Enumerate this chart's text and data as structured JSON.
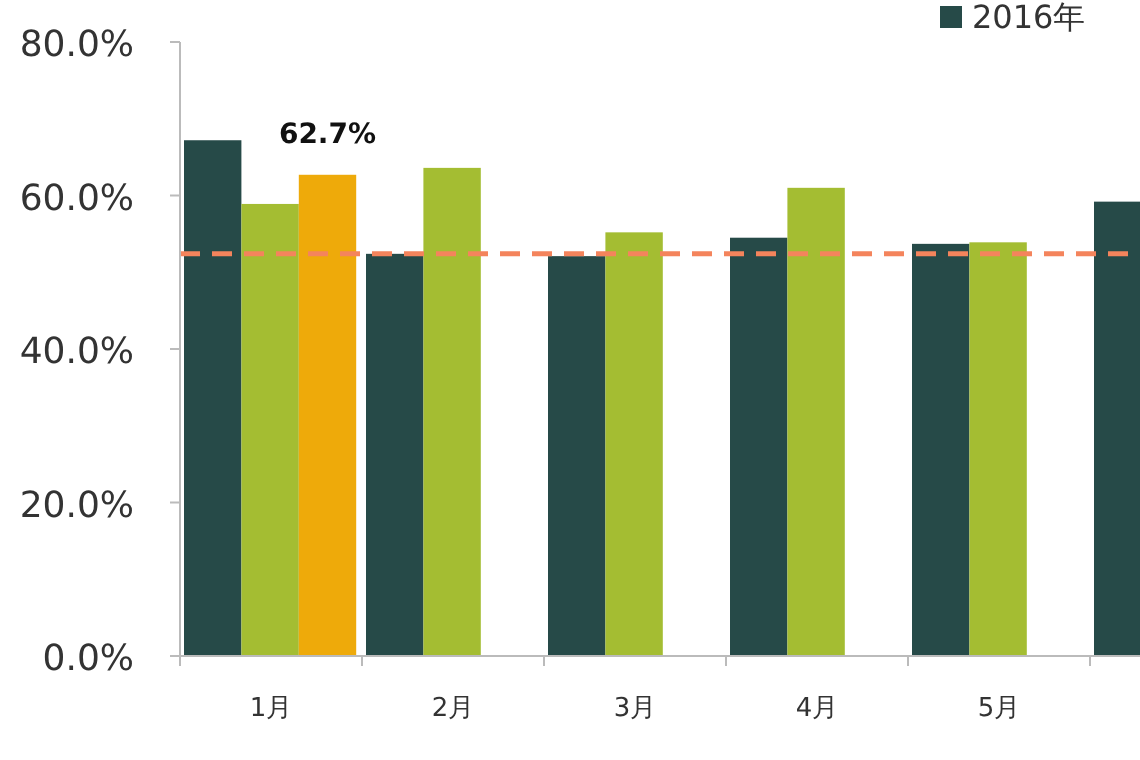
{
  "chart_data": {
    "type": "bar",
    "categories": [
      "1月",
      "2月",
      "3月",
      "4月",
      "5月",
      null
    ],
    "series": [
      {
        "name": "2016年",
        "color": "#264a48",
        "values": [
          67.2,
          52.4,
          52.1,
          54.5,
          53.7,
          59.2
        ]
      },
      {
        "color": "#a4bd32",
        "values": [
          58.9,
          63.6,
          55.2,
          61.0,
          53.9,
          null
        ]
      },
      {
        "color": "#eeaa0a",
        "values": [
          62.7,
          null,
          null,
          null,
          null,
          null
        ],
        "value_labels": [
          "62.7%",
          null,
          null,
          null,
          null,
          null
        ]
      }
    ],
    "ylim": [
      0,
      80
    ],
    "yticks": [
      {
        "value": 0,
        "label": "0.0%"
      },
      {
        "value": 20,
        "label": "20.0%"
      },
      {
        "value": 40,
        "label": "40.0%"
      },
      {
        "value": 60,
        "label": "60.0%"
      },
      {
        "value": 80,
        "label": "80.0%"
      }
    ],
    "ref_lines": [
      {
        "axis": "y",
        "value": 52.4,
        "color": "#f4845c",
        "line_style": "dashed"
      }
    ],
    "legend": "top right",
    "grid": false
  }
}
